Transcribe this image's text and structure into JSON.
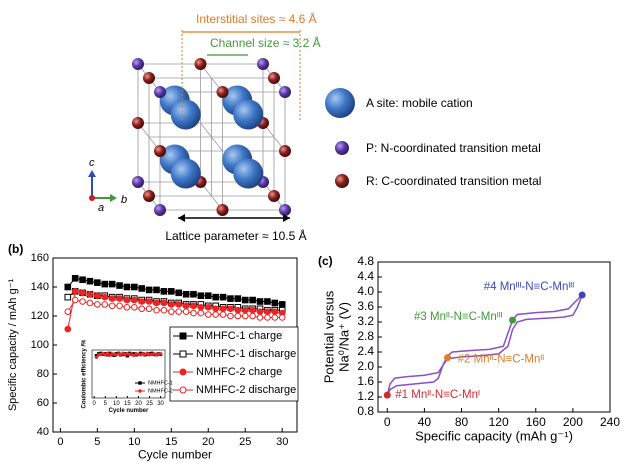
{
  "structure": {
    "interstitial": "Interstitial sites ≈ 4.6 Å",
    "channel": "Channel size ≈ 3.2 Å",
    "lattice": "Lattice parameter ≈ 10.5 Å",
    "axes": [
      "c",
      "b",
      "a"
    ],
    "legend": [
      "A site: mobile cation",
      "P: N-coordinated transition metal",
      "R: C-coordinated transition metal"
    ]
  },
  "chart_data": [
    {
      "type": "line",
      "panel_label": "(b)",
      "xlabel": "Cycle number",
      "ylabel": "Specific capacity / mAh g⁻¹",
      "xlim": [
        -1,
        32
      ],
      "ylim": [
        40,
        160
      ],
      "xticks": [
        0,
        5,
        10,
        15,
        20,
        25,
        30
      ],
      "yticks": [
        40,
        60,
        80,
        100,
        120,
        140,
        160
      ],
      "legend": "lower right",
      "x": [
        1,
        2,
        3,
        4,
        5,
        6,
        7,
        8,
        9,
        10,
        11,
        12,
        13,
        14,
        15,
        16,
        17,
        18,
        19,
        20,
        21,
        22,
        23,
        24,
        25,
        26,
        27,
        28,
        29,
        30
      ],
      "series": [
        {
          "name": "NMHFC-1 charge",
          "color": "#000000",
          "marker": "square",
          "filled": true,
          "values": [
            140,
            146,
            145,
            144,
            143,
            142,
            142,
            141,
            140,
            140,
            139,
            138,
            138,
            137,
            137,
            136,
            135,
            135,
            134,
            134,
            133,
            133,
            132,
            132,
            131,
            131,
            130,
            130,
            129,
            128
          ]
        },
        {
          "name": "NMHFC-1 discharge",
          "color": "#000000",
          "marker": "square",
          "filled": false,
          "values": [
            133,
            137,
            136,
            135,
            134,
            134,
            133,
            133,
            132,
            132,
            131,
            131,
            130,
            130,
            129,
            129,
            128,
            128,
            128,
            127,
            127,
            126,
            126,
            126,
            125,
            125,
            125,
            124,
            124,
            124
          ]
        },
        {
          "name": "NMHFC-2 charge",
          "color": "#ee2222",
          "marker": "circle",
          "filled": true,
          "values": [
            111,
            137,
            136,
            135,
            134,
            133,
            132,
            132,
            131,
            131,
            130,
            130,
            129,
            129,
            128,
            128,
            127,
            127,
            126,
            126,
            125,
            125,
            125,
            124,
            124,
            124,
            123,
            123,
            123,
            122
          ]
        },
        {
          "name": "NMHFC-2 discharge",
          "color": "#ee2222",
          "marker": "circle",
          "filled": false,
          "values": [
            123,
            131,
            130,
            129,
            128,
            128,
            127,
            127,
            126,
            126,
            125,
            125,
            124,
            124,
            123,
            123,
            123,
            122,
            122,
            121,
            121,
            121,
            120,
            120,
            120,
            120,
            119,
            119,
            119,
            119
          ]
        }
      ]
    },
    {
      "type": "line",
      "xlabel": "Cycle number",
      "ylabel": "Coulombic efficiency /%",
      "xlim": [
        -1,
        32
      ],
      "ylim": [
        0,
        100
      ],
      "xticks": [
        0,
        5,
        10,
        15,
        20,
        25,
        30
      ],
      "legend": "lower right",
      "x": [
        1,
        2,
        3,
        4,
        5,
        6,
        7,
        8,
        9,
        10,
        11,
        12,
        13,
        14,
        15,
        16,
        17,
        18,
        19,
        20,
        21,
        22,
        23,
        24,
        25,
        26,
        27,
        28,
        29,
        30
      ],
      "series": [
        {
          "name": "NMHFC-1",
          "color": "#000000",
          "marker": "square",
          "filled": true,
          "values": [
            88,
            92,
            93,
            91,
            92,
            90,
            93,
            91,
            89,
            92,
            93,
            90,
            91,
            92,
            88,
            93,
            91,
            92,
            90,
            91,
            93,
            92,
            90,
            91,
            92,
            93,
            91,
            90,
            92,
            91
          ]
        },
        {
          "name": "NMHFC-2",
          "color": "#ee2222",
          "marker": "circle",
          "filled": true,
          "values": [
            85,
            90,
            91,
            92,
            90,
            93,
            89,
            92,
            91,
            90,
            92,
            91,
            93,
            90,
            92,
            91,
            90,
            89,
            92,
            91,
            90,
            92,
            91,
            93,
            90,
            91,
            92,
            90,
            91,
            92
          ]
        }
      ]
    },
    {
      "type": "line",
      "panel_label": "(c)",
      "xlabel": "Specific capacity (mAh g⁻¹)",
      "ylabel": [
        "Potential versus",
        "Na⁰/Na⁺ (V)"
      ],
      "xlim": [
        -10,
        240
      ],
      "ylim": [
        0.8,
        4.8
      ],
      "xticks": [
        0,
        40,
        80,
        120,
        160,
        200,
        240
      ],
      "yticks": [
        0.8,
        1.2,
        1.6,
        {
          "value": 2,
          "label": "2.0"
        },
        2.4,
        2.8,
        3.2,
        3.6,
        {
          "value": 4,
          "label": "4.0"
        },
        4.4,
        4.8
      ],
      "series": [
        {
          "color": "#8a4fc4",
          "x": [
            0,
            3,
            8,
            20,
            40,
            55,
            60,
            65,
            70,
            90,
            110,
            125,
            130,
            135,
            140,
            160,
            180,
            195,
            203,
            210
          ],
          "values": [
            1.25,
            1.55,
            1.7,
            1.74,
            1.78,
            1.85,
            2.05,
            2.3,
            2.4,
            2.44,
            2.47,
            2.55,
            2.9,
            3.25,
            3.4,
            3.45,
            3.48,
            3.55,
            3.75,
            3.92
          ]
        },
        {
          "color": "#8a4fc4",
          "x": [
            210,
            205,
            200,
            190,
            170,
            150,
            140,
            135,
            130,
            120,
            100,
            80,
            65,
            60,
            55,
            50,
            30,
            10,
            3,
            0
          ],
          "values": [
            3.92,
            3.6,
            3.38,
            3.33,
            3.3,
            3.27,
            3.2,
            3.0,
            2.55,
            2.35,
            2.3,
            2.27,
            2.22,
            2.05,
            1.7,
            1.6,
            1.55,
            1.5,
            1.4,
            1.25
          ]
        }
      ],
      "annotations": [
        {
          "text": "#1 Mnᴵᴵ-N≡C-Mnᴵ",
          "x": 0,
          "y": 1.25,
          "color": "#d42a2a"
        },
        {
          "text": "#2 Mnᴵᴵ-N≡C-Mnᴵᴵ",
          "x": 65,
          "y": 2.25,
          "color": "#e07a28"
        },
        {
          "text": "#3 Mnᴵᴵ-N≡C-Mnᴵᴵᴵ",
          "x": 135,
          "y": 3.25,
          "color": "#3f9a3a"
        },
        {
          "text": "#4 Mnᴵᴵᴵ-N≡C-Mnᴵᴵᴵ",
          "x": 210,
          "y": 3.92,
          "color": "#3a48b8"
        }
      ]
    }
  ]
}
